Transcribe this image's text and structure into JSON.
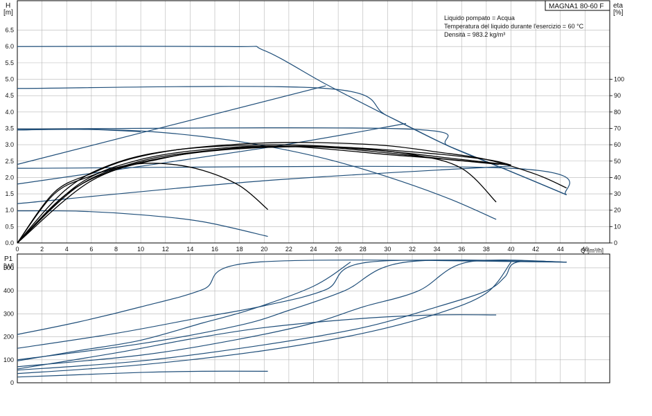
{
  "header": {
    "model": "MAGNA1 80-60 F",
    "info": [
      "Liquido pompato = Acqua",
      "Temperatura del liquido durante l'esercizio = 60 °C",
      "Densità = 983.2 kg/m³"
    ]
  },
  "colors": {
    "blue": "#1f4e79",
    "black": "#000000",
    "grid": "#b4b4b4"
  },
  "chart_data": [
    {
      "type": "line",
      "title": "",
      "y_label": "H",
      "y_unit": "[m]",
      "y2_label": "eta",
      "y2_unit": "[%]",
      "x_label": "Q",
      "x_unit": "[m³/h]",
      "xlim": [
        0,
        48
      ],
      "ylim": [
        0,
        7.4
      ],
      "y2lim": [
        0,
        148
      ],
      "x_ticks": [
        0,
        2,
        4,
        6,
        8,
        10,
        12,
        14,
        16,
        18,
        20,
        22,
        24,
        26,
        28,
        30,
        32,
        34,
        36,
        38,
        40,
        42,
        44,
        46
      ],
      "y_ticks": [
        0,
        0.5,
        1.0,
        1.5,
        2.0,
        2.5,
        3.0,
        3.5,
        4.0,
        4.5,
        5.0,
        5.5,
        6.0,
        6.5
      ],
      "y_tick_labels": [
        "0.0",
        "0.5",
        "1.0",
        "1.5",
        "2.0",
        "2.5",
        "3.0",
        "3.5",
        "4.0",
        "4.5",
        "5.0",
        "5.5",
        "6.0",
        "6.5"
      ],
      "y2_ticks": [
        0,
        10,
        20,
        30,
        40,
        50,
        60,
        70,
        80,
        90,
        100
      ],
      "grid": true,
      "head_curves": [
        {
          "color": "blue",
          "points": [
            [
              0,
              6.0
            ],
            [
              17.2,
              6.0
            ],
            [
              20,
              5.88
            ],
            [
              25,
              4.85
            ],
            [
              30,
              3.88
            ],
            [
              35,
              2.95
            ],
            [
              40,
              2.18
            ],
            [
              44.5,
              1.47
            ]
          ]
        },
        {
          "color": "blue",
          "points": [
            [
              0,
              4.72
            ],
            [
              25,
              4.72
            ],
            [
              30,
              3.88
            ],
            [
              35,
              2.95
            ],
            [
              40,
              2.18
            ],
            [
              44.5,
              1.47
            ]
          ]
        },
        {
          "color": "blue",
          "points": [
            [
              0,
              3.45
            ],
            [
              5,
              3.47
            ],
            [
              10,
              3.42
            ],
            [
              15,
              3.25
            ],
            [
              20,
              2.97
            ],
            [
              25,
              2.57
            ],
            [
              30,
              2.02
            ],
            [
              35,
              1.35
            ],
            [
              38.8,
              0.72
            ]
          ]
        },
        {
          "color": "blue",
          "points": [
            [
              0,
              3.48
            ],
            [
              31.5,
              3.48
            ],
            [
              35,
              2.95
            ],
            [
              40,
              2.18
            ],
            [
              44.5,
              1.47
            ]
          ]
        },
        {
          "color": "blue",
          "points": [
            [
              0,
              2.28
            ],
            [
              40,
              2.28
            ],
            [
              44.5,
              1.47
            ]
          ]
        },
        {
          "color": "blue",
          "points": [
            [
              0,
              0.98
            ],
            [
              5,
              0.97
            ],
            [
              10,
              0.86
            ],
            [
              15,
              0.65
            ],
            [
              20.3,
              0.2
            ]
          ]
        }
      ],
      "eta_curves": [
        {
          "color": "blue",
          "points": [
            [
              0,
              48
            ],
            [
              25,
              96
            ]
          ]
        },
        {
          "color": "blue",
          "points": [
            [
              0,
              36
            ],
            [
              20,
              58
            ],
            [
              31.5,
              73
            ]
          ]
        },
        {
          "color": "blue",
          "points": [
            [
              0,
              69
            ],
            [
              5,
              69.5
            ],
            [
              10,
              68
            ]
          ]
        },
        {
          "color": "blue",
          "points": [
            [
              0,
              24
            ],
            [
              20,
              38
            ],
            [
              40,
              47
            ]
          ]
        }
      ],
      "black_curves": [
        {
          "points": [
            [
              0,
              0
            ],
            [
              3,
              1.55
            ],
            [
              6,
              2.12
            ],
            [
              9,
              2.55
            ],
            [
              13,
              2.85
            ],
            [
              18,
              3.02
            ],
            [
              22,
              3.07
            ],
            [
              26,
              3.05
            ],
            [
              30,
              2.97
            ],
            [
              34,
              2.78
            ],
            [
              38,
              2.55
            ],
            [
              42,
              2.1
            ],
            [
              44.5,
              1.68
            ]
          ]
        },
        {
          "points": [
            [
              0,
              0
            ],
            [
              4,
              1.65
            ],
            [
              8,
              2.45
            ],
            [
              13,
              2.85
            ],
            [
              20,
              3.0
            ],
            [
              26,
              2.93
            ],
            [
              32,
              2.7
            ],
            [
              36,
              2.28
            ],
            [
              38.8,
              1.25
            ]
          ]
        },
        {
          "points": [
            [
              0,
              0
            ],
            [
              3,
              1.5
            ],
            [
              6,
              2.05
            ],
            [
              9,
              2.38
            ],
            [
              12,
              2.42
            ],
            [
              15,
              2.22
            ],
            [
              18,
              1.75
            ],
            [
              20.3,
              1.02
            ]
          ]
        },
        {
          "points": [
            [
              0,
              0
            ],
            [
              4,
              1.5
            ],
            [
              8,
              2.25
            ],
            [
              13,
              2.68
            ],
            [
              19,
              2.9
            ],
            [
              26,
              2.93
            ],
            [
              33,
              2.75
            ],
            [
              38,
              2.55
            ],
            [
              40,
              2.38
            ]
          ]
        },
        {
          "points": [
            [
              0,
              0
            ],
            [
              5,
              1.8
            ],
            [
              10,
              2.55
            ],
            [
              16,
              2.88
            ],
            [
              22,
              2.95
            ],
            [
              30,
              2.7
            ],
            [
              34,
              2.58
            ],
            [
              39,
              2.4
            ]
          ]
        },
        {
          "points": [
            [
              0,
              0
            ],
            [
              5,
              1.75
            ],
            [
              10,
              2.5
            ],
            [
              15,
              2.8
            ],
            [
              20,
              2.95
            ],
            [
              25,
              2.92
            ],
            [
              30,
              2.75
            ],
            [
              35,
              2.55
            ],
            [
              40,
              2.38
            ]
          ]
        },
        {
          "points": [
            [
              0,
              0
            ],
            [
              6,
              1.9
            ],
            [
              12,
              2.6
            ],
            [
              18,
              2.9
            ],
            [
              24,
              2.95
            ],
            [
              30,
              2.8
            ],
            [
              36,
              2.55
            ],
            [
              40,
              2.38
            ]
          ]
        }
      ]
    },
    {
      "type": "line",
      "title": "",
      "y_label": "P1",
      "y_unit": "[W]",
      "xlim": [
        0,
        48
      ],
      "ylim": [
        0,
        560
      ],
      "y_ticks": [
        0,
        100,
        200,
        300,
        400,
        500
      ],
      "grid": true,
      "power_curves": [
        {
          "color": "blue",
          "points": [
            [
              0,
              210
            ],
            [
              5,
              265
            ],
            [
              10,
              330
            ],
            [
              15,
              405
            ],
            [
              19.5,
              525
            ],
            [
              44.5,
              525
            ]
          ]
        },
        {
          "color": "blue",
          "points": [
            [
              0,
              150
            ],
            [
              8,
              215
            ],
            [
              15,
              285
            ],
            [
              20,
              335
            ],
            [
              25,
              405
            ],
            [
              28.5,
              525
            ],
            [
              44.5,
              525
            ]
          ]
        },
        {
          "color": "blue",
          "points": [
            [
              0,
              100
            ],
            [
              10,
              170
            ],
            [
              18,
              250
            ],
            [
              22,
              315
            ],
            [
              26.5,
              400
            ],
            [
              31.5,
              525
            ],
            [
              44.5,
              525
            ]
          ]
        },
        {
          "color": "blue",
          "points": [
            [
              0,
              70
            ],
            [
              10,
              120
            ],
            [
              18,
              190
            ],
            [
              24,
              260
            ],
            [
              28,
              330
            ],
            [
              32.5,
              400
            ],
            [
              36.5,
              525
            ],
            [
              44.5,
              525
            ]
          ]
        },
        {
          "color": "blue",
          "points": [
            [
              0,
              55
            ],
            [
              10,
              95
            ],
            [
              20,
              165
            ],
            [
              28,
              240
            ],
            [
              34,
              330
            ],
            [
              38,
              400
            ],
            [
              39.5,
              460
            ],
            [
              40.5,
              525
            ],
            [
              44.5,
              525
            ]
          ]
        },
        {
          "color": "blue",
          "points": [
            [
              0,
              40
            ],
            [
              10,
              78
            ],
            [
              20,
              140
            ],
            [
              28,
              215
            ],
            [
              34,
              300
            ],
            [
              38,
              390
            ],
            [
              40,
              525
            ]
          ]
        },
        {
          "color": "blue",
          "points": [
            [
              0,
              25
            ],
            [
              5,
              35
            ],
            [
              10,
              45
            ],
            [
              15,
              50
            ],
            [
              20.3,
              50
            ]
          ]
        },
        {
          "color": "blue",
          "points": [
            [
              0,
              60
            ],
            [
              8,
              130
            ],
            [
              14,
              190
            ],
            [
              20,
              240
            ],
            [
              28,
              280
            ],
            [
              34,
              295
            ],
            [
              38.8,
              295
            ]
          ]
        },
        {
          "color": "blue",
          "points": [
            [
              0,
              95
            ],
            [
              5,
              140
            ],
            [
              10,
              185
            ],
            [
              15,
              260
            ],
            [
              19,
              320
            ],
            [
              24,
              420
            ],
            [
              27,
              525
            ]
          ]
        }
      ]
    }
  ]
}
